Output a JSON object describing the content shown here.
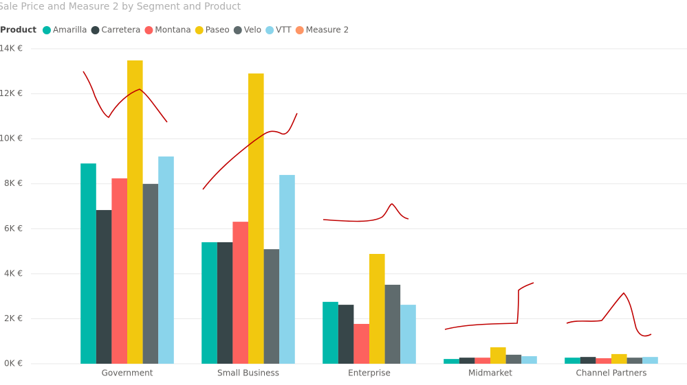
{
  "chart_data": {
    "type": "bar",
    "title": "Sale Price and Measure 2 by Segment and Product",
    "legend_title": "Product",
    "categories": [
      "Government",
      "Small Business",
      "Enterprise",
      "Midmarket",
      "Channel Partners"
    ],
    "series": [
      {
        "name": "Amarilla",
        "color": "#01b8aa",
        "values": [
          8900,
          5400,
          2750,
          210,
          270
        ]
      },
      {
        "name": "Carretera",
        "color": "#374649",
        "values": [
          6830,
          5400,
          2620,
          270,
          300
        ]
      },
      {
        "name": "Montana",
        "color": "#fd625e",
        "values": [
          8240,
          6310,
          1770,
          270,
          245
        ]
      },
      {
        "name": "Paseo",
        "color": "#f2c80f",
        "values": [
          13480,
          12900,
          4880,
          730,
          430
        ]
      },
      {
        "name": "Velo",
        "color": "#5f6b6d",
        "values": [
          7990,
          5090,
          3510,
          400,
          270
        ]
      },
      {
        "name": "VTT",
        "color": "#8ad4eb",
        "values": [
          9210,
          8390,
          2620,
          335,
          300
        ]
      },
      {
        "name": "Measure 2",
        "color": "#fe9666",
        "values": [
          null,
          null,
          null,
          null,
          null
        ]
      }
    ],
    "ylim": [
      0,
      14000
    ],
    "yticks": [
      {
        "value": 0,
        "label": "0K €"
      },
      {
        "value": 2000,
        "label": "2K €"
      },
      {
        "value": 4000,
        "label": "4K €"
      },
      {
        "value": 6000,
        "label": "6K €"
      },
      {
        "value": 8000,
        "label": "8K €"
      },
      {
        "value": 10000,
        "label": "10K €"
      },
      {
        "value": 12000,
        "label": "12K €"
      },
      {
        "value": 14000,
        "label": "14K €"
      }
    ],
    "grid": true
  }
}
